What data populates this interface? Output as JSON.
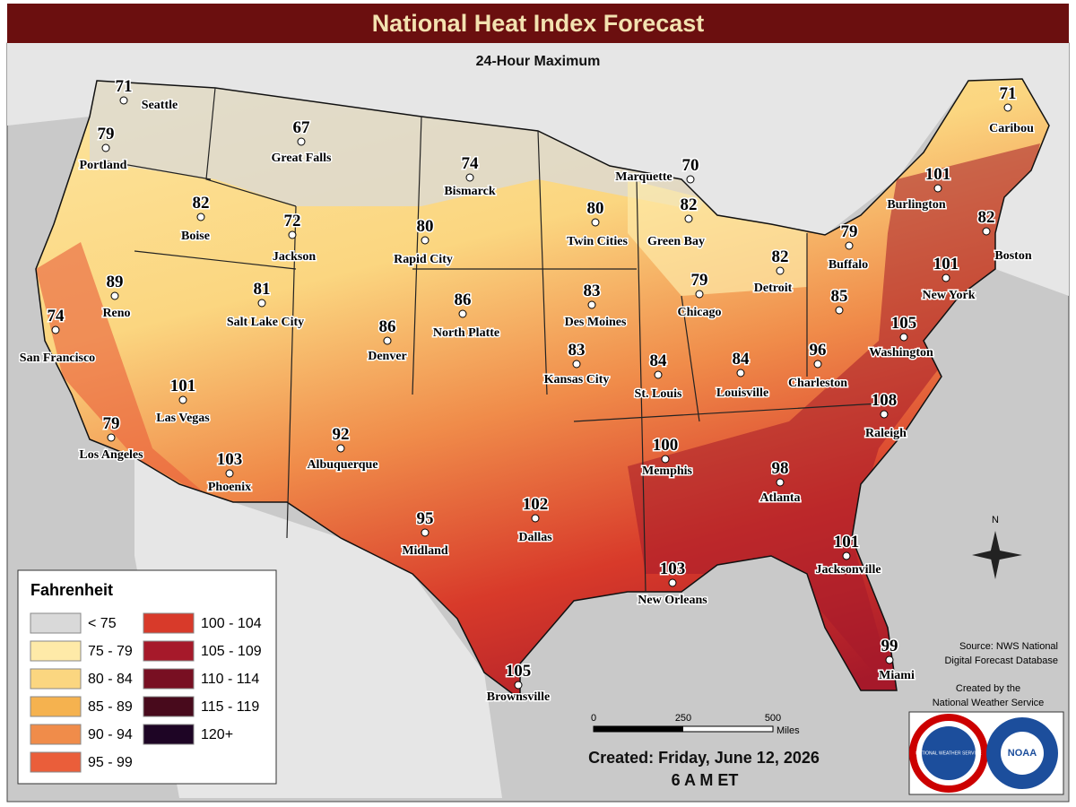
{
  "header": {
    "title": "National Heat Index Forecast",
    "subtitle": "24-Hour Maximum"
  },
  "cities": [
    {
      "name": "Seattle",
      "value": 71
    },
    {
      "name": "Portland",
      "value": 79
    },
    {
      "name": "Great Falls",
      "value": 67
    },
    {
      "name": "Bismarck",
      "value": 74
    },
    {
      "name": "Marquette",
      "value": 70
    },
    {
      "name": "Caribou",
      "value": 71
    },
    {
      "name": "Burlington",
      "value": 101
    },
    {
      "name": "Boston",
      "value": 82
    },
    {
      "name": "Boise",
      "value": 82
    },
    {
      "name": "Jackson",
      "value": 72
    },
    {
      "name": "Rapid City",
      "value": 80
    },
    {
      "name": "Twin Cities",
      "value": 80
    },
    {
      "name": "Green Bay",
      "value": 82
    },
    {
      "name": "Buffalo",
      "value": 79
    },
    {
      "name": "Detroit",
      "value": 82
    },
    {
      "name": "Reno",
      "value": 89
    },
    {
      "name": "Salt Lake City",
      "value": 81
    },
    {
      "name": "Des Moines",
      "value": 83
    },
    {
      "name": "Chicago",
      "value": 79
    },
    {
      "name": "New York",
      "value": 101
    },
    {
      "name": "San Francisco",
      "value": 74
    },
    {
      "name": "North Platte",
      "value": 86
    },
    {
      "name": "Denver",
      "value": 86
    },
    {
      "value": 85
    },
    {
      "name": "Washington",
      "value": 105
    },
    {
      "name": "Kansas City",
      "value": 83
    },
    {
      "name": "St. Louis",
      "value": 84
    },
    {
      "name": "Louisville",
      "value": 84
    },
    {
      "name": "Charleston",
      "value": 96
    },
    {
      "name": "Las Vegas",
      "value": 101
    },
    {
      "name": "Raleigh",
      "value": 108
    },
    {
      "name": "Los Angeles",
      "value": 79
    },
    {
      "name": "Albuquerque",
      "value": 92
    },
    {
      "name": "Memphis",
      "value": 100
    },
    {
      "name": "Phoenix",
      "value": 103
    },
    {
      "name": "Atlanta",
      "value": 98
    },
    {
      "name": "Dallas",
      "value": 102
    },
    {
      "name": "Midland",
      "value": 95
    },
    {
      "name": "Jacksonville",
      "value": 101
    },
    {
      "name": "New Orleans",
      "value": 103
    },
    {
      "name": "Miami",
      "value": 99
    },
    {
      "name": "Brownsville",
      "value": 105
    }
  ],
  "legend": {
    "title": "Fahrenheit",
    "items": [
      {
        "label": "< 75",
        "color": "#d9d9d9"
      },
      {
        "label": "75 - 79",
        "color": "#feeaa8"
      },
      {
        "label": "80 - 84",
        "color": "#fbd680"
      },
      {
        "label": "85 - 89",
        "color": "#f5b24f"
      },
      {
        "label": "90 - 94",
        "color": "#f08c4a"
      },
      {
        "label": "95 - 99",
        "color": "#ea5e3a"
      },
      {
        "label": "100 - 104",
        "color": "#d83a2a"
      },
      {
        "label": "105 - 109",
        "color": "#a6192a"
      },
      {
        "label": "110 - 114",
        "color": "#780f22"
      },
      {
        "label": "115 - 119",
        "color": "#480a1c"
      },
      {
        "label": "120+",
        "color": "#1e0525"
      }
    ]
  },
  "scale": {
    "ticks": [
      0,
      250,
      500
    ],
    "unit": "Miles"
  },
  "compass": "N",
  "source": [
    "Source: NWS National",
    "Digital Forecast Database"
  ],
  "credit": [
    "Created by the",
    "National Weather Service"
  ],
  "logos": [
    "NATIONAL WEATHER SERVICE",
    "NOAA"
  ],
  "created": "Created: Friday, June 12, 2026",
  "time": "6 A M ET"
}
